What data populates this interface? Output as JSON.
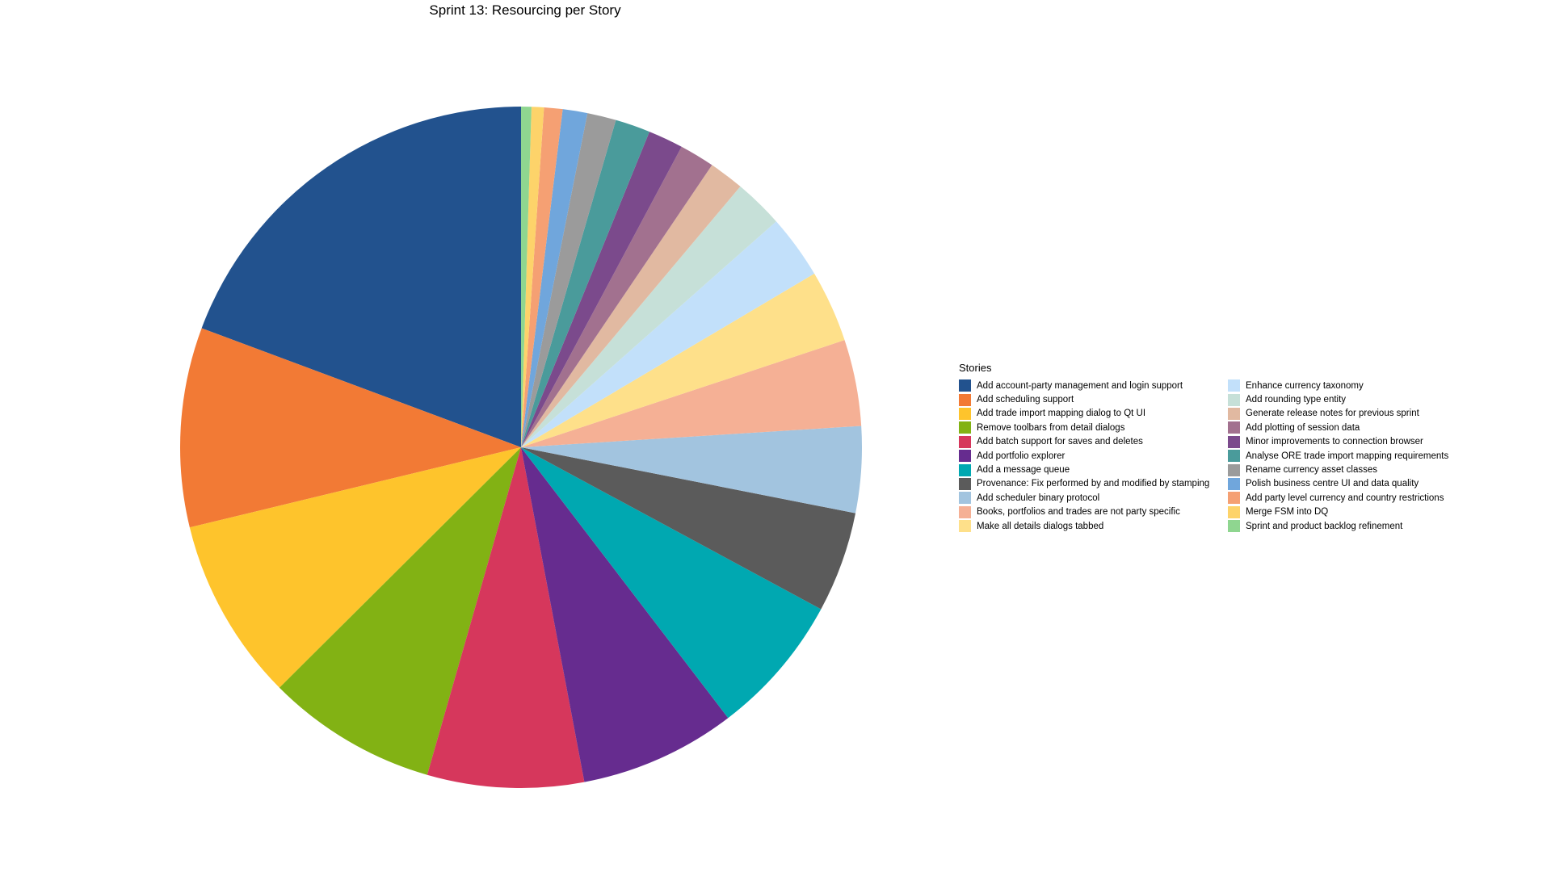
{
  "chart_data": {
    "type": "pie",
    "title": "Sprint 13: Resourcing per Story",
    "legend_title": "Stories",
    "legend_placement": "right",
    "slices": [
      {
        "label": "Add account-party management and login support",
        "value": 19.8,
        "color": "#22528e"
      },
      {
        "label": "Add scheduling support",
        "value": 9.7,
        "color": "#f27a35"
      },
      {
        "label": "Add trade import mapping dialog to Qt UI",
        "value": 8.9,
        "color": "#fec42c"
      },
      {
        "label": "Remove toolbars from detail dialogs",
        "value": 8.3,
        "color": "#82b214"
      },
      {
        "label": "Add batch support for saves and deletes",
        "value": 7.6,
        "color": "#d6375c"
      },
      {
        "label": "Add portfolio explorer",
        "value": 7.6,
        "color": "#662c8f"
      },
      {
        "label": "Add a message queue",
        "value": 6.9,
        "color": "#00a8b1"
      },
      {
        "label": "Provenance: Fix performed by and modified by stamping",
        "value": 4.9,
        "color": "#5b5b5b"
      },
      {
        "label": "Add scheduler binary protocol",
        "value": 4.2,
        "color": "#a2c4df"
      },
      {
        "label": "Books, portfolios and trades are not party specific",
        "value": 4.2,
        "color": "#f5b095"
      },
      {
        "label": "Make all details dialogs tabbed",
        "value": 3.5,
        "color": "#fee08a"
      },
      {
        "label": "Enhance currency taxonomy",
        "value": 3.1,
        "color": "#c2e0fa"
      },
      {
        "label": "Add rounding type entity",
        "value": 2.4,
        "color": "#c6e0d8"
      },
      {
        "label": "Generate release notes for previous sprint",
        "value": 1.7,
        "color": "#e1b9a1"
      },
      {
        "label": "Add plotting of session data",
        "value": 1.7,
        "color": "#a2718f"
      },
      {
        "label": "Minor improvements to connection browser",
        "value": 1.7,
        "color": "#7b4a8c"
      },
      {
        "label": "Analyse ORE trade import mapping requirements",
        "value": 1.7,
        "color": "#4a9b9b"
      },
      {
        "label": "Rename currency asset classes",
        "value": 1.4,
        "color": "#9b9b9b"
      },
      {
        "label": "Polish business centre UI and data quality",
        "value": 1.2,
        "color": "#70a6dc"
      },
      {
        "label": "Add party level currency and country restrictions",
        "value": 0.9,
        "color": "#f5a073"
      },
      {
        "label": "Merge FSM into DQ",
        "value": 0.6,
        "color": "#fdd36a"
      },
      {
        "label": "Sprint and product backlog refinement",
        "value": 0.5,
        "color": "#8fd690"
      }
    ]
  }
}
